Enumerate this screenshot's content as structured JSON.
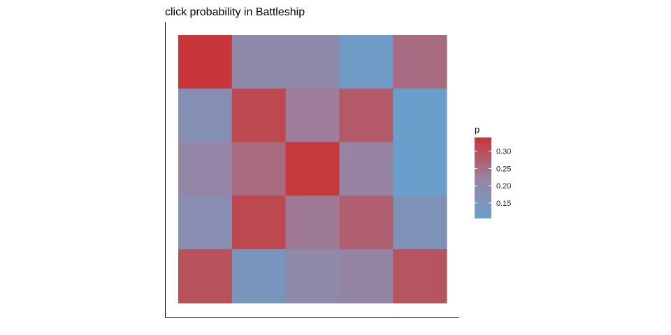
{
  "chart_data": {
    "type": "heatmap",
    "title": "click probability in Battleship",
    "xlabel": "",
    "ylabel": "",
    "rows": 5,
    "cols": 5,
    "values": [
      [
        0.335,
        0.195,
        0.195,
        0.12,
        0.255
      ],
      [
        0.17,
        0.31,
        0.23,
        0.285,
        0.105
      ],
      [
        0.205,
        0.26,
        0.33,
        0.215,
        0.105
      ],
      [
        0.175,
        0.31,
        0.235,
        0.275,
        0.16
      ],
      [
        0.295,
        0.145,
        0.195,
        0.21,
        0.29
      ]
    ],
    "legend": {
      "title": "p",
      "placement": "right",
      "min": 0.105,
      "max": 0.34,
      "ticks": [
        0.15,
        0.2,
        0.25,
        0.3
      ],
      "tick_labels": [
        "0.15",
        "0.20",
        "0.25",
        "0.30"
      ]
    },
    "colors": {
      "low": "#6a9fcc",
      "high": "#c93434"
    },
    "grid": false
  }
}
